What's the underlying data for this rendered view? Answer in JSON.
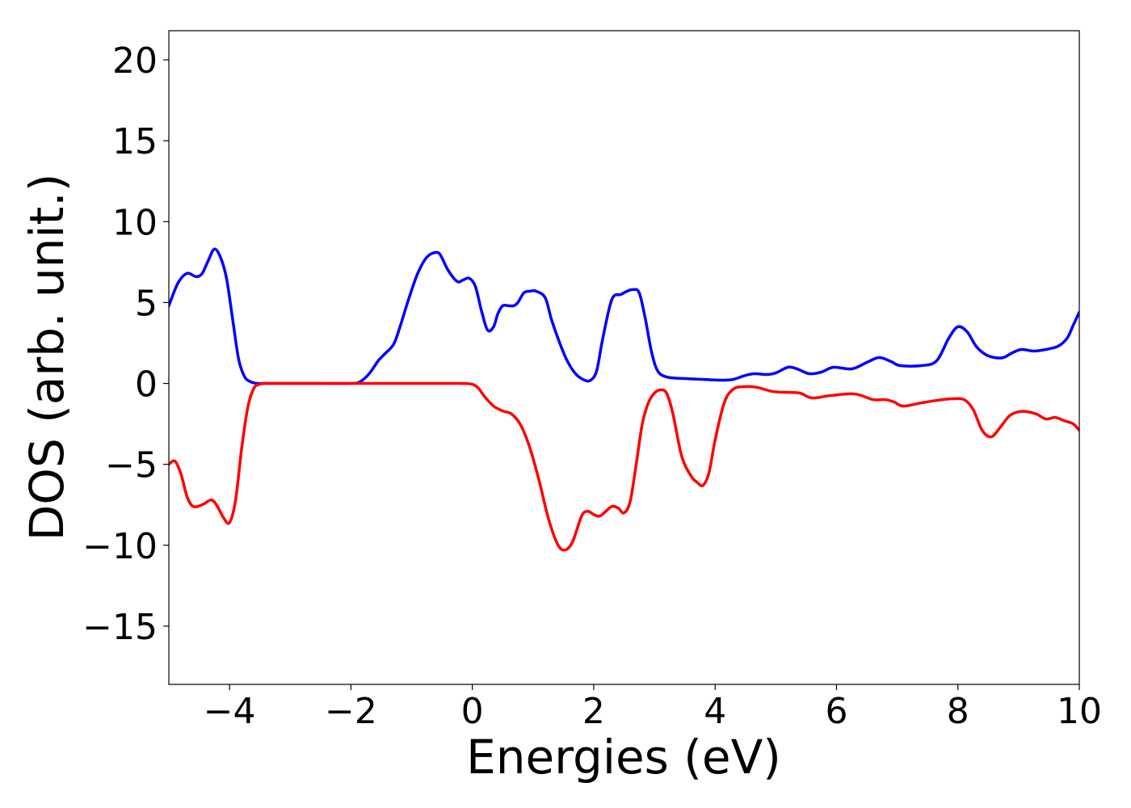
{
  "chart_data": {
    "type": "line",
    "title": "",
    "xlabel": "Energies (eV)",
    "ylabel": "DOS (arb. unit.)",
    "xlim": [
      -5,
      10
    ],
    "ylim": [
      -18.6,
      21.8
    ],
    "xticks": [
      -4,
      -2,
      0,
      2,
      4,
      6,
      8,
      10
    ],
    "xtick_labels": [
      "−4",
      "−2",
      "0",
      "2",
      "4",
      "6",
      "8",
      "10"
    ],
    "yticks": [
      20,
      15,
      10,
      5,
      0,
      -5,
      -10,
      -15
    ],
    "ytick_labels": [
      "20",
      "15",
      "10",
      "5",
      "0",
      "−5",
      "−10",
      "−15"
    ],
    "grid": false,
    "legend": "none",
    "series": [
      {
        "color": "#0000ff",
        "x": [
          -5.0,
          -4.85,
          -4.7,
          -4.55,
          -4.45,
          -4.35,
          -4.25,
          -4.15,
          -4.05,
          -3.95,
          -3.85,
          -3.75,
          -3.65,
          -3.55,
          -3.45,
          -3.3,
          -3.0,
          -2.5,
          -2.0,
          -1.85,
          -1.7,
          -1.55,
          -1.45,
          -1.3,
          -1.2,
          -1.05,
          -0.9,
          -0.75,
          -0.6,
          -0.52,
          -0.4,
          -0.25,
          -0.15,
          -0.05,
          0.05,
          0.15,
          0.25,
          0.35,
          0.42,
          0.5,
          0.6,
          0.68,
          0.75,
          0.85,
          0.95,
          1.05,
          1.2,
          1.3,
          1.4,
          1.55,
          1.7,
          1.85,
          1.95,
          2.05,
          2.15,
          2.3,
          2.45,
          2.55,
          2.65,
          2.75,
          2.85,
          2.95,
          3.05,
          3.2,
          3.5,
          3.8,
          4.1,
          4.3,
          4.5,
          4.65,
          4.85,
          5.0,
          5.2,
          5.35,
          5.55,
          5.75,
          5.95,
          6.25,
          6.5,
          6.7,
          6.9,
          7.05,
          7.4,
          7.65,
          7.85,
          8.0,
          8.15,
          8.3,
          8.45,
          8.6,
          8.75,
          8.9,
          9.05,
          9.25,
          9.45,
          9.65,
          9.8,
          9.9,
          10.0
        ],
        "y": [
          4.8,
          6.2,
          6.8,
          6.6,
          6.8,
          7.6,
          8.3,
          7.8,
          6.5,
          4.0,
          1.5,
          0.4,
          0.1,
          0.0,
          0.0,
          0.0,
          0.0,
          0.0,
          0.0,
          0.1,
          0.6,
          1.4,
          1.8,
          2.4,
          3.4,
          5.2,
          6.8,
          7.8,
          8.1,
          7.9,
          7.0,
          6.3,
          6.4,
          6.5,
          6.0,
          4.5,
          3.3,
          3.5,
          4.3,
          4.8,
          4.8,
          4.8,
          5.0,
          5.6,
          5.7,
          5.7,
          5.3,
          4.0,
          2.9,
          1.5,
          0.6,
          0.2,
          0.2,
          0.8,
          2.8,
          5.2,
          5.5,
          5.7,
          5.8,
          5.6,
          4.0,
          2.0,
          0.8,
          0.4,
          0.3,
          0.25,
          0.2,
          0.25,
          0.5,
          0.6,
          0.55,
          0.65,
          1.0,
          0.9,
          0.6,
          0.7,
          1.0,
          0.9,
          1.3,
          1.6,
          1.35,
          1.1,
          1.1,
          1.4,
          2.8,
          3.5,
          3.2,
          2.3,
          1.8,
          1.6,
          1.6,
          1.9,
          2.1,
          2.0,
          2.1,
          2.3,
          2.8,
          3.6,
          4.4
        ]
      },
      {
        "color": "#ff0000",
        "x": [
          -5.0,
          -4.9,
          -4.8,
          -4.7,
          -4.6,
          -4.45,
          -4.3,
          -4.2,
          -4.1,
          -4.0,
          -3.9,
          -3.8,
          -3.7,
          -3.6,
          -3.5,
          -3.4,
          -3.3,
          -3.0,
          -2.5,
          -2.0,
          -1.5,
          -1.0,
          -0.5,
          -0.2,
          0.0,
          0.1,
          0.2,
          0.35,
          0.5,
          0.65,
          0.8,
          0.95,
          1.1,
          1.25,
          1.4,
          1.52,
          1.65,
          1.8,
          1.9,
          2.0,
          2.1,
          2.2,
          2.3,
          2.4,
          2.5,
          2.6,
          2.7,
          2.8,
          2.9,
          3.0,
          3.1,
          3.2,
          3.3,
          3.45,
          3.6,
          3.7,
          3.8,
          3.9,
          4.0,
          4.15,
          4.3,
          4.5,
          4.7,
          4.95,
          5.2,
          5.4,
          5.6,
          5.9,
          6.3,
          6.6,
          6.8,
          6.95,
          7.1,
          7.4,
          7.65,
          7.9,
          8.1,
          8.25,
          8.4,
          8.55,
          8.7,
          8.85,
          9.0,
          9.15,
          9.3,
          9.45,
          9.6,
          9.75,
          9.9,
          10.0
        ],
        "y": [
          -5.0,
          -4.8,
          -5.6,
          -7.0,
          -7.6,
          -7.5,
          -7.2,
          -7.6,
          -8.3,
          -8.6,
          -7.2,
          -4.0,
          -1.5,
          -0.3,
          -0.05,
          0.0,
          0.0,
          0.0,
          0.0,
          0.0,
          0.0,
          0.0,
          0.0,
          0.0,
          -0.05,
          -0.3,
          -0.8,
          -1.4,
          -1.7,
          -1.9,
          -2.6,
          -4.0,
          -6.0,
          -8.3,
          -9.9,
          -10.3,
          -9.8,
          -8.2,
          -7.9,
          -8.1,
          -8.2,
          -7.9,
          -7.6,
          -7.7,
          -8.0,
          -7.3,
          -5.0,
          -2.5,
          -1.2,
          -0.6,
          -0.4,
          -0.6,
          -1.8,
          -4.5,
          -5.7,
          -6.1,
          -6.3,
          -5.5,
          -3.5,
          -1.2,
          -0.35,
          -0.2,
          -0.25,
          -0.5,
          -0.55,
          -0.6,
          -0.9,
          -0.75,
          -0.65,
          -1.0,
          -1.0,
          -1.15,
          -1.4,
          -1.2,
          -1.05,
          -0.95,
          -1.0,
          -1.6,
          -2.9,
          -3.3,
          -2.7,
          -2.0,
          -1.75,
          -1.75,
          -1.9,
          -2.2,
          -2.1,
          -2.3,
          -2.5,
          -2.9
        ]
      }
    ]
  }
}
